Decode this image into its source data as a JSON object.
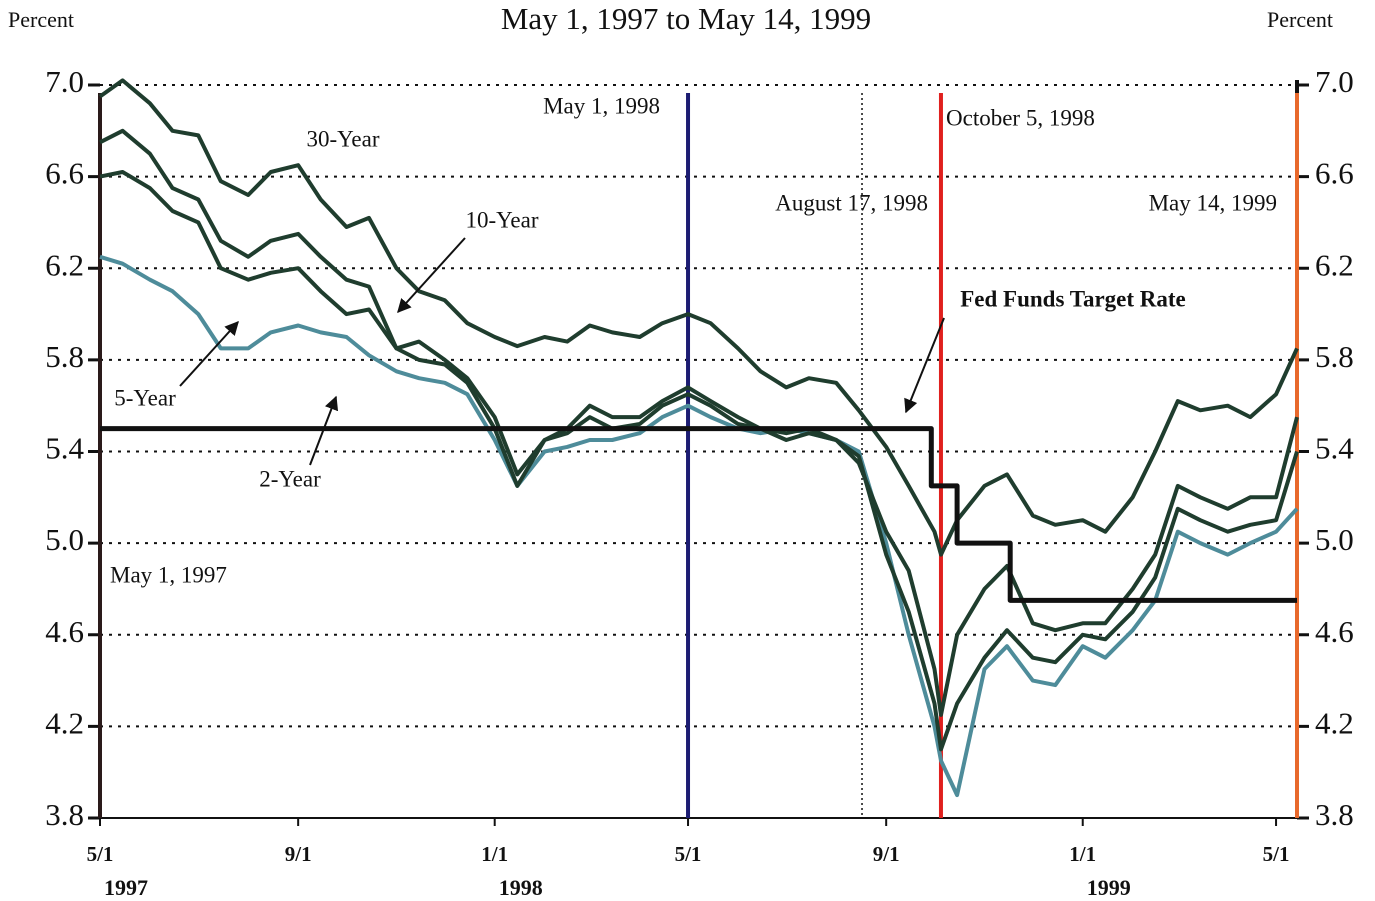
{
  "chart_data": {
    "type": "line",
    "title": "May 1, 1997 to May 14, 1999",
    "y_label": "Percent",
    "y2_label": "Percent",
    "xlim": [
      "1997-05-01",
      "1999-05-14"
    ],
    "ylim": [
      3.8,
      7.0
    ],
    "y2lim": [
      3.8,
      7.0
    ],
    "yticks": [
      3.8,
      4.2,
      4.6,
      {
        "value": 5.0,
        "label": "5.0"
      },
      5.4,
      5.8,
      6.2,
      6.6,
      {
        "value": 7.0,
        "label": "7.0"
      }
    ],
    "y2ticks": [
      3.8,
      4.2,
      4.6,
      {
        "value": 5.0,
        "label": "5.0"
      },
      5.4,
      5.8,
      6.2,
      6.6,
      {
        "value": 7.0,
        "label": "7.0"
      }
    ],
    "grid": true,
    "grid_style": "dotted",
    "xticks": [
      {
        "value": "1997-05-01",
        "label": "5/1"
      },
      {
        "value": "1997-09-01",
        "label": "9/1"
      },
      {
        "value": "1998-01-01",
        "label": "1/1"
      },
      {
        "value": "1998-05-01",
        "label": "5/1"
      },
      {
        "value": "1998-09-01",
        "label": "9/1"
      },
      {
        "value": "1999-01-01",
        "label": "1/1"
      },
      {
        "value": "1999-05-01",
        "label": "5/1"
      }
    ],
    "year_labels": [
      {
        "value": "1997-05-01",
        "label": "1997"
      },
      {
        "value": "1998-01-01",
        "label": "1998"
      },
      {
        "value": "1999-01-01",
        "label": "1999"
      }
    ],
    "x": [
      "1997-05-01",
      "1997-05-15",
      "1997-06-01",
      "1997-06-15",
      "1997-07-01",
      "1997-07-15",
      "1997-08-01",
      "1997-08-15",
      "1997-09-01",
      "1997-09-15",
      "1997-10-01",
      "1997-10-15",
      "1997-11-01",
      "1997-11-15",
      "1997-12-01",
      "1997-12-15",
      "1998-01-01",
      "1998-01-15",
      "1998-02-01",
      "1998-02-15",
      "1998-03-01",
      "1998-03-15",
      "1998-04-01",
      "1998-04-15",
      "1998-05-01",
      "1998-05-15",
      "1998-06-01",
      "1998-06-15",
      "1998-07-01",
      "1998-07-15",
      "1998-08-01",
      "1998-08-15",
      "1998-09-01",
      "1998-09-15",
      "1998-10-01",
      "1998-10-05",
      "1998-10-15",
      "1998-11-01",
      "1998-11-15",
      "1998-12-01",
      "1998-12-15",
      "1999-01-01",
      "1999-01-15",
      "1999-02-01",
      "1999-02-15",
      "1999-03-01",
      "1999-03-15",
      "1999-04-01",
      "1999-04-15",
      "1999-05-01",
      "1999-05-14"
    ],
    "series": [
      {
        "name": "2-Year",
        "color": "#4e8c9a",
        "values": [
          6.25,
          6.22,
          6.15,
          6.1,
          6.0,
          5.85,
          5.85,
          5.92,
          5.95,
          5.92,
          5.9,
          5.82,
          5.75,
          5.72,
          5.7,
          5.65,
          5.45,
          5.25,
          5.4,
          5.42,
          5.45,
          5.45,
          5.48,
          5.55,
          5.6,
          5.55,
          5.5,
          5.48,
          5.5,
          5.48,
          5.45,
          5.4,
          5.0,
          4.6,
          4.2,
          4.05,
          3.9,
          4.45,
          4.55,
          4.4,
          4.38,
          4.55,
          4.5,
          4.62,
          4.75,
          5.05,
          5.0,
          4.95,
          5.0,
          5.05,
          5.15
        ]
      },
      {
        "name": "5-Year",
        "color": "#1f3d2e",
        "values": [
          6.6,
          6.62,
          6.55,
          6.45,
          6.4,
          6.2,
          6.15,
          6.18,
          6.2,
          6.1,
          6.0,
          6.02,
          5.85,
          5.8,
          5.78,
          5.7,
          5.5,
          5.25,
          5.45,
          5.48,
          5.55,
          5.5,
          5.52,
          5.6,
          5.65,
          5.6,
          5.52,
          5.5,
          5.48,
          5.5,
          5.45,
          5.38,
          4.95,
          4.7,
          4.3,
          4.1,
          4.3,
          4.5,
          4.62,
          4.5,
          4.48,
          4.6,
          4.58,
          4.7,
          4.85,
          5.15,
          5.1,
          5.05,
          5.08,
          5.1,
          5.4
        ]
      },
      {
        "name": "10-Year",
        "color": "#1f3d2e",
        "values": [
          6.75,
          6.8,
          6.7,
          6.55,
          6.5,
          6.32,
          6.25,
          6.32,
          6.35,
          6.25,
          6.15,
          6.12,
          5.85,
          5.88,
          5.8,
          5.72,
          5.55,
          5.3,
          5.45,
          5.5,
          5.6,
          5.55,
          5.55,
          5.62,
          5.68,
          5.62,
          5.55,
          5.5,
          5.45,
          5.48,
          5.45,
          5.35,
          5.05,
          4.88,
          4.45,
          4.25,
          4.6,
          4.8,
          4.9,
          4.65,
          4.62,
          4.65,
          4.65,
          4.8,
          4.95,
          5.25,
          5.2,
          5.15,
          5.2,
          5.2,
          5.55
        ]
      },
      {
        "name": "30-Year",
        "color": "#1f3d2e",
        "values": [
          6.95,
          7.02,
          6.92,
          6.8,
          6.78,
          6.58,
          6.52,
          6.62,
          6.65,
          6.5,
          6.38,
          6.42,
          6.2,
          6.1,
          6.06,
          5.96,
          5.9,
          5.86,
          5.9,
          5.88,
          5.95,
          5.92,
          5.9,
          5.96,
          6.0,
          5.96,
          5.85,
          5.75,
          5.68,
          5.72,
          5.7,
          5.58,
          5.42,
          5.25,
          5.05,
          4.95,
          5.1,
          5.25,
          5.3,
          5.12,
          5.08,
          5.1,
          5.05,
          5.2,
          5.4,
          5.62,
          5.58,
          5.6,
          5.55,
          5.65,
          5.85
        ]
      },
      {
        "name": "Fed Funds Target Rate",
        "color": "#111111",
        "step": true,
        "x": [
          "1997-05-01",
          "1998-09-29",
          "1998-10-15",
          "1998-11-17",
          "1999-05-14"
        ],
        "values": [
          5.5,
          5.25,
          5.0,
          4.75,
          4.75
        ]
      }
    ],
    "vlines": [
      {
        "x": "1997-05-01",
        "label": "May 1, 1997",
        "color": "#5b2a5e",
        "style": "solid"
      },
      {
        "x": "1998-05-01",
        "label": "May 1, 1998",
        "color": "#1c1c72",
        "style": "solid"
      },
      {
        "x": "1998-08-17",
        "label": "August 17, 1998",
        "color": "#111111",
        "style": "dotted"
      },
      {
        "x": "1998-10-05",
        "label": "October 5, 1998",
        "color": "#e0201e",
        "style": "solid"
      },
      {
        "x": "1999-05-14",
        "label": "May 14, 1999",
        "color": "#e8692c",
        "style": "solid"
      }
    ]
  }
}
